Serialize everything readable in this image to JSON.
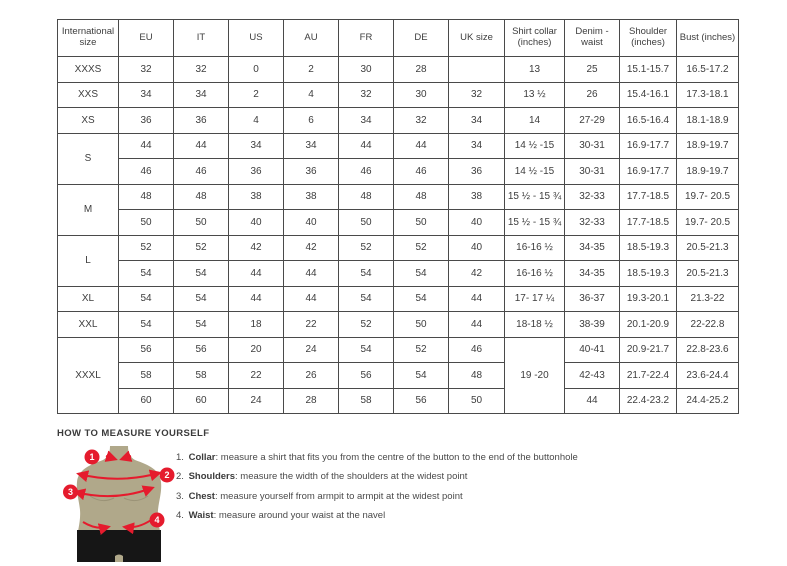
{
  "colors": {
    "accent_red": "#e51b2d",
    "body_tan": "#b0a88a",
    "shorts_black": "#161616",
    "border_dark": "#4a4a4a"
  },
  "size_chart": {
    "columns": [
      "International size",
      "EU",
      "IT",
      "US",
      "AU",
      "FR",
      "DE",
      "UK size",
      "Shirt collar (inches)",
      "Denim - waist",
      "Shoulder (inches)",
      "Bust (inches)"
    ],
    "rows": [
      [
        "XXXS",
        "32",
        "32",
        "0",
        "2",
        "30",
        "28",
        "",
        "13",
        "25",
        "15.1-15.7",
        "16.5-17.2"
      ],
      [
        "XXS",
        "34",
        "34",
        "2",
        "4",
        "32",
        "30",
        "32",
        "13 ½",
        "26",
        "15.4-16.1",
        "17.3-18.1"
      ],
      [
        "XS",
        "36",
        "36",
        "4",
        "6",
        "34",
        "32",
        "34",
        "14",
        "27-29",
        "16.5-16.4",
        "18.1-18.9"
      ],
      [
        {
          "t": "S",
          "rs": 2
        },
        "44",
        "44",
        "34",
        "34",
        "44",
        "44",
        "34",
        "14 ½ -15",
        "30-31",
        "16.9-17.7",
        "18.9-19.7"
      ],
      [
        "46",
        "46",
        "36",
        "36",
        "46",
        "46",
        "36",
        "14 ½ -15",
        "30-31",
        "16.9-17.7",
        "18.9-19.7"
      ],
      [
        {
          "t": "M",
          "rs": 2
        },
        "48",
        "48",
        "38",
        "38",
        "48",
        "48",
        "38",
        "15 ½ - 15 ¾",
        "32-33",
        "17.7-18.5",
        "19.7- 20.5"
      ],
      [
        "50",
        "50",
        "40",
        "40",
        "50",
        "50",
        "40",
        "15 ½ - 15 ¾",
        "32-33",
        "17.7-18.5",
        "19.7- 20.5"
      ],
      [
        {
          "t": "L",
          "rs": 2
        },
        "52",
        "52",
        "42",
        "42",
        "52",
        "52",
        "40",
        "16-16 ½",
        "34-35",
        "18.5-19.3",
        "20.5-21.3"
      ],
      [
        "54",
        "54",
        "44",
        "44",
        "54",
        "54",
        "42",
        "16-16 ½",
        "34-35",
        "18.5-19.3",
        "20.5-21.3"
      ],
      [
        "XL",
        "54",
        "54",
        "44",
        "44",
        "54",
        "54",
        "44",
        "17- 17 ¼",
        "36-37",
        "19.3-20.1",
        "21.3-22"
      ],
      [
        "XXL",
        "54",
        "54",
        "18",
        "22",
        "52",
        "50",
        "44",
        "18-18 ½",
        "38-39",
        "20.1-20.9",
        "22-22.8"
      ],
      [
        {
          "t": "XXXL",
          "rs": 3
        },
        "56",
        "56",
        "20",
        "24",
        "54",
        "52",
        "46",
        {
          "t": "19 -20",
          "rs": 3
        },
        "40-41",
        "20.9-21.7",
        "22.8-23.6"
      ],
      [
        "58",
        "58",
        "22",
        "26",
        "56",
        "54",
        "48",
        "42-43",
        "21.7-22.4",
        "23.6-24.4"
      ],
      [
        "60",
        "60",
        "24",
        "28",
        "58",
        "56",
        "50",
        "44",
        "22.4-23.2",
        "24.4-25.2"
      ]
    ]
  },
  "measure": {
    "heading": "HOW TO MEASURE YOURSELF",
    "badges": [
      "1",
      "2",
      "3",
      "4"
    ],
    "items": [
      {
        "num": "1.",
        "label": "Collar",
        "rest": ": measure a shirt that fits you from the centre of the button to the end of the buttonhole"
      },
      {
        "num": "2.",
        "label": "Shoulders",
        "rest": ": measure the width of the shoulders at the widest point"
      },
      {
        "num": "3.",
        "label": "Chest",
        "rest": ": measure yourself from armpit to armpit at the widest point"
      },
      {
        "num": "4.",
        "label": "Waist",
        "rest": ": measure around your waist at the navel"
      }
    ]
  }
}
